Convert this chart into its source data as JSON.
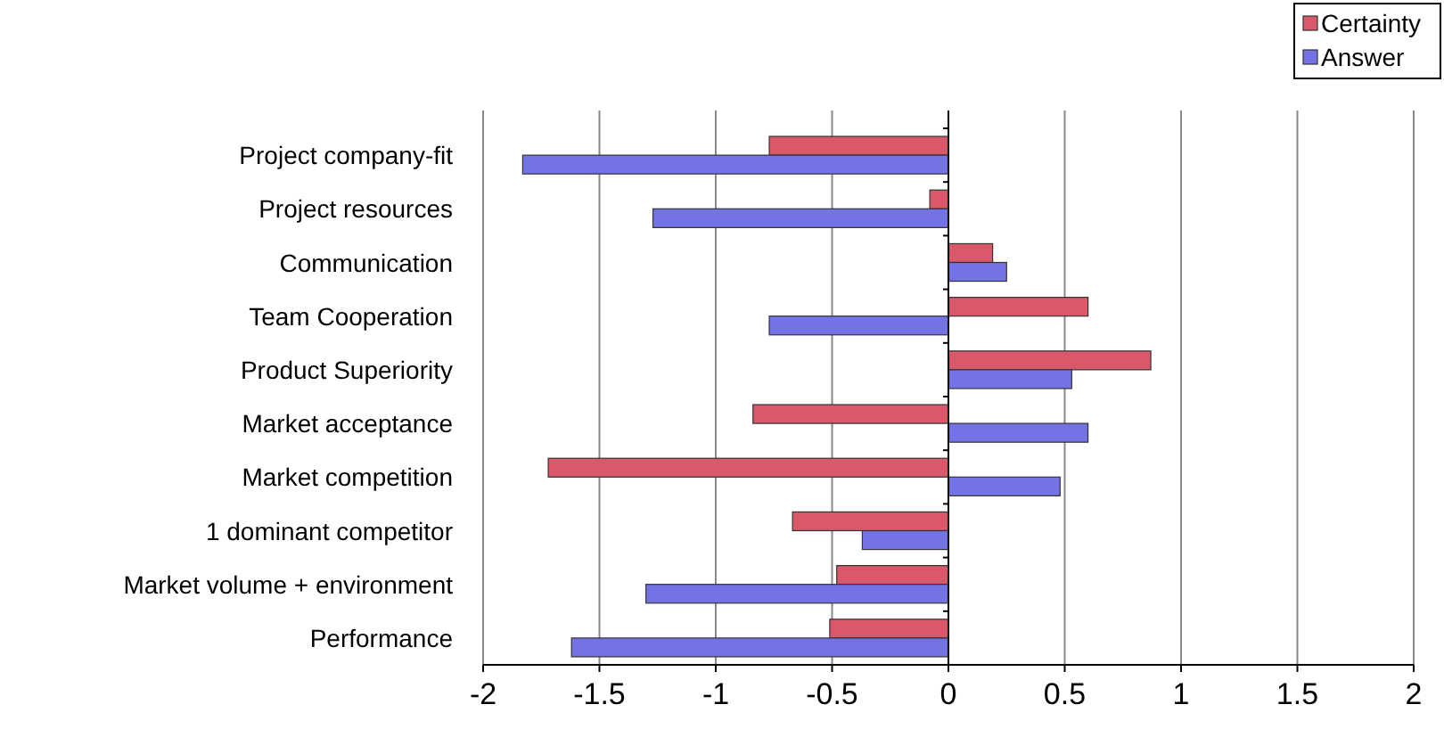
{
  "chart_data": {
    "type": "bar",
    "orientation": "horizontal",
    "categories": [
      "Project company-fit",
      "Project resources",
      "Communication",
      "Team Cooperation",
      "Product Superiority",
      "Market acceptance",
      "Market competition",
      "1 dominant competitor",
      "Market volume + environment",
      "Performance"
    ],
    "series": [
      {
        "name": "Certainty",
        "color": "#d9596a",
        "values": [
          -0.77,
          -0.08,
          0.19,
          0.6,
          0.87,
          -0.84,
          -1.72,
          -0.67,
          -0.48,
          -0.51
        ]
      },
      {
        "name": "Answer",
        "color": "#7373e6",
        "values": [
          -1.83,
          -1.27,
          0.25,
          -0.77,
          0.53,
          0.6,
          0.48,
          -0.37,
          -1.3,
          -1.62
        ]
      }
    ],
    "xlim": [
      -2,
      2
    ],
    "xticks": [
      -2,
      -1.5,
      -1,
      -0.5,
      0,
      0.5,
      1,
      1.5,
      2
    ],
    "grid": "x",
    "legend": "top right"
  }
}
